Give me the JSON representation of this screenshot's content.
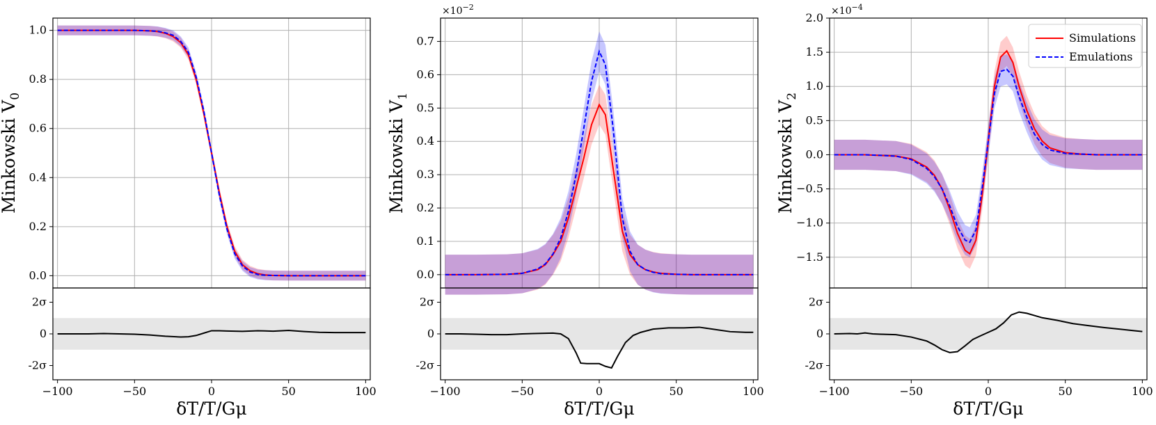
{
  "chart_data": [
    {
      "type": "line",
      "panel": "left",
      "ylabel": "Minkowski V",
      "ylabel_sub": "0",
      "xlabel": "δT/T/Gμ",
      "multiplier": "",
      "xlim": [
        -103,
        103
      ],
      "ylim": [
        -0.05,
        1.05
      ],
      "xticks": [
        -100,
        -50,
        0,
        50,
        100
      ],
      "xtick_labels": [
        "−100",
        "−50",
        "0",
        "50",
        "100"
      ],
      "yticks": [
        0.0,
        0.2,
        0.4,
        0.6,
        0.8,
        1.0
      ],
      "ytick_labels": [
        "0.0",
        "0.2",
        "0.4",
        "0.6",
        "0.8",
        "1.0"
      ],
      "grid": true,
      "band_halfwidth": 0.02,
      "series": [
        {
          "name": "Simulations",
          "x": [
            -100,
            -90,
            -80,
            -70,
            -60,
            -50,
            -40,
            -35,
            -30,
            -25,
            -20,
            -15,
            -10,
            -5,
            0,
            5,
            10,
            15,
            20,
            25,
            30,
            35,
            40,
            50,
            60,
            70,
            80,
            90,
            100
          ],
          "y": [
            1.0,
            1.0,
            1.0,
            1.0,
            1.0,
            1.0,
            0.998,
            0.995,
            0.988,
            0.975,
            0.95,
            0.9,
            0.8,
            0.66,
            0.5,
            0.34,
            0.2,
            0.1,
            0.045,
            0.02,
            0.008,
            0.003,
            0.001,
            0,
            0,
            0,
            0,
            0,
            0
          ]
        },
        {
          "name": "Emulations",
          "x": [
            -100,
            -90,
            -80,
            -70,
            -60,
            -50,
            -40,
            -35,
            -30,
            -25,
            -20,
            -15,
            -10,
            -5,
            0,
            5,
            10,
            15,
            20,
            25,
            30,
            35,
            40,
            50,
            60,
            70,
            80,
            90,
            100
          ],
          "y": [
            1.0,
            1.0,
            1.0,
            1.0,
            1.0,
            1.0,
            0.998,
            0.996,
            0.99,
            0.98,
            0.955,
            0.91,
            0.81,
            0.67,
            0.5,
            0.33,
            0.19,
            0.09,
            0.04,
            0.015,
            0.005,
            0.002,
            0.001,
            0,
            0,
            0,
            0,
            0,
            0
          ]
        }
      ],
      "residual": {
        "yticks": [
          2,
          0,
          -2
        ],
        "ytick_labels": [
          "2σ",
          "0",
          "-2σ"
        ],
        "ylim": [
          -2.9,
          2.9
        ],
        "band": [
          -1,
          1
        ],
        "x": [
          -100,
          -90,
          -80,
          -70,
          -60,
          -50,
          -40,
          -30,
          -20,
          -15,
          -10,
          -5,
          0,
          5,
          10,
          20,
          30,
          40,
          50,
          60,
          70,
          80,
          90,
          100
        ],
        "y": [
          0,
          0,
          0,
          0.02,
          0,
          -0.02,
          -0.07,
          -0.15,
          -0.2,
          -0.18,
          -0.1,
          0.05,
          0.2,
          0.2,
          0.18,
          0.16,
          0.2,
          0.17,
          0.22,
          0.15,
          0.1,
          0.08,
          0.08,
          0.08
        ]
      }
    },
    {
      "type": "line",
      "panel": "middle",
      "ylabel": "Minkowski V",
      "ylabel_sub": "1",
      "xlabel": "δT/T/Gμ",
      "multiplier": "×10",
      "multiplier_exp": "−2",
      "xlim": [
        -103,
        103
      ],
      "ylim": [
        -0.04,
        0.77
      ],
      "xticks": [
        -100,
        -50,
        0,
        50,
        100
      ],
      "xtick_labels": [
        "−100",
        "−50",
        "0",
        "50",
        "100"
      ],
      "yticks": [
        0.0,
        0.1,
        0.2,
        0.3,
        0.4,
        0.5,
        0.6,
        0.7
      ],
      "ytick_labels": [
        "0.0",
        "0.1",
        "0.2",
        "0.3",
        "0.4",
        "0.5",
        "0.6",
        "0.7"
      ],
      "grid": true,
      "band_halfwidth": 0.06,
      "series": [
        {
          "name": "Simulations",
          "x": [
            -100,
            -80,
            -60,
            -50,
            -40,
            -35,
            -30,
            -25,
            -20,
            -15,
            -10,
            -5,
            0,
            4,
            9,
            15,
            20,
            25,
            30,
            35,
            40,
            50,
            60,
            80,
            100
          ],
          "y": [
            0,
            0,
            0.001,
            0.004,
            0.015,
            0.03,
            0.06,
            0.1,
            0.17,
            0.26,
            0.35,
            0.45,
            0.51,
            0.48,
            0.32,
            0.13,
            0.06,
            0.03,
            0.015,
            0.008,
            0.004,
            0.001,
            0,
            0,
            0
          ]
        },
        {
          "name": "Emulations",
          "x": [
            -100,
            -80,
            -60,
            -50,
            -40,
            -35,
            -30,
            -25,
            -20,
            -15,
            -10,
            -5,
            0,
            4,
            9,
            15,
            20,
            25,
            30,
            35,
            40,
            50,
            60,
            80,
            100
          ],
          "y": [
            0,
            0,
            0.001,
            0.004,
            0.017,
            0.032,
            0.062,
            0.11,
            0.19,
            0.3,
            0.44,
            0.58,
            0.67,
            0.63,
            0.44,
            0.17,
            0.07,
            0.03,
            0.015,
            0.007,
            0.003,
            0.001,
            0,
            0,
            0
          ]
        }
      ],
      "residual": {
        "yticks": [
          2,
          0,
          -2
        ],
        "ytick_labels": [
          "2σ",
          "0",
          "-2σ"
        ],
        "ylim": [
          -2.9,
          2.9
        ],
        "band": [
          -1,
          1
        ],
        "x": [
          -100,
          -90,
          -80,
          -70,
          -60,
          -50,
          -40,
          -30,
          -25,
          -20,
          -15,
          -12,
          -8,
          -4,
          0,
          4,
          8,
          12,
          17,
          22,
          27,
          35,
          45,
          55,
          65,
          75,
          85,
          95,
          100
        ],
        "y": [
          0,
          0,
          -0.02,
          -0.05,
          -0.05,
          0,
          0.03,
          0.05,
          0,
          -0.3,
          -1.2,
          -1.85,
          -1.88,
          -1.88,
          -1.88,
          -2.05,
          -2.15,
          -1.4,
          -0.55,
          -0.1,
          0.1,
          0.3,
          0.38,
          0.38,
          0.42,
          0.28,
          0.14,
          0.1,
          0.1
        ]
      }
    },
    {
      "type": "line",
      "panel": "right",
      "ylabel": "Minkowski V",
      "ylabel_sub": "2",
      "xlabel": "δT/T/Gμ",
      "multiplier": "×10",
      "multiplier_exp": "−4",
      "xlim": [
        -103,
        103
      ],
      "ylim": [
        -1.95,
        2.0
      ],
      "xticks": [
        -100,
        -50,
        0,
        50,
        100
      ],
      "xtick_labels": [
        "−100",
        "−50",
        "0",
        "50",
        "100"
      ],
      "yticks": [
        -1.5,
        -1.0,
        -0.5,
        0.0,
        0.5,
        1.0,
        1.5,
        2.0
      ],
      "ytick_labels": [
        "−1.5",
        "−1.0",
        "−0.5",
        "0.0",
        "0.5",
        "1.0",
        "1.5",
        "2.0"
      ],
      "grid": true,
      "band_halfwidth": 0.22,
      "legend": {
        "position": "top-right",
        "entries": [
          "Simulations",
          "Emulations"
        ]
      },
      "series": [
        {
          "name": "Simulations",
          "x": [
            -100,
            -80,
            -60,
            -50,
            -40,
            -35,
            -30,
            -25,
            -20,
            -15,
            -12,
            -8,
            -4,
            0,
            4,
            8,
            12,
            16,
            20,
            25,
            30,
            35,
            40,
            50,
            60,
            70,
            80,
            100
          ],
          "y": [
            0,
            0,
            -0.02,
            -0.06,
            -0.18,
            -0.3,
            -0.5,
            -0.8,
            -1.15,
            -1.4,
            -1.45,
            -1.25,
            -0.6,
            0.2,
            1.0,
            1.43,
            1.52,
            1.35,
            1.0,
            0.65,
            0.38,
            0.2,
            0.1,
            0.03,
            0.01,
            0,
            0,
            0
          ]
        },
        {
          "name": "Emulations",
          "x": [
            -100,
            -80,
            -60,
            -50,
            -40,
            -35,
            -30,
            -25,
            -20,
            -15,
            -12,
            -8,
            -4,
            0,
            4,
            8,
            12,
            16,
            20,
            25,
            30,
            35,
            40,
            50,
            60,
            70,
            80,
            100
          ],
          "y": [
            0,
            0,
            -0.02,
            -0.07,
            -0.2,
            -0.32,
            -0.5,
            -0.75,
            -1.05,
            -1.25,
            -1.28,
            -1.1,
            -0.5,
            0.2,
            0.9,
            1.22,
            1.25,
            1.15,
            0.85,
            0.55,
            0.3,
            0.15,
            0.07,
            0.02,
            0.01,
            0,
            0,
            0
          ]
        }
      ],
      "residual": {
        "yticks": [
          2,
          0,
          -2
        ],
        "ytick_labels": [
          "2σ",
          "0",
          "-2σ"
        ],
        "ylim": [
          -2.9,
          2.9
        ],
        "band": [
          -1,
          1
        ],
        "x": [
          -100,
          -90,
          -85,
          -80,
          -75,
          -70,
          -60,
          -50,
          -40,
          -35,
          -30,
          -25,
          -20,
          -15,
          -10,
          -5,
          0,
          5,
          10,
          15,
          20,
          25,
          35,
          45,
          55,
          65,
          75,
          85,
          95,
          100
        ],
        "y": [
          0,
          0.02,
          0,
          0.06,
          0,
          -0.02,
          -0.05,
          -0.2,
          -0.45,
          -0.7,
          -1.0,
          -1.18,
          -1.12,
          -0.75,
          -0.35,
          -0.12,
          0.1,
          0.32,
          0.7,
          1.2,
          1.38,
          1.3,
          1.02,
          0.85,
          0.65,
          0.52,
          0.4,
          0.3,
          0.2,
          0.15
        ]
      }
    }
  ]
}
